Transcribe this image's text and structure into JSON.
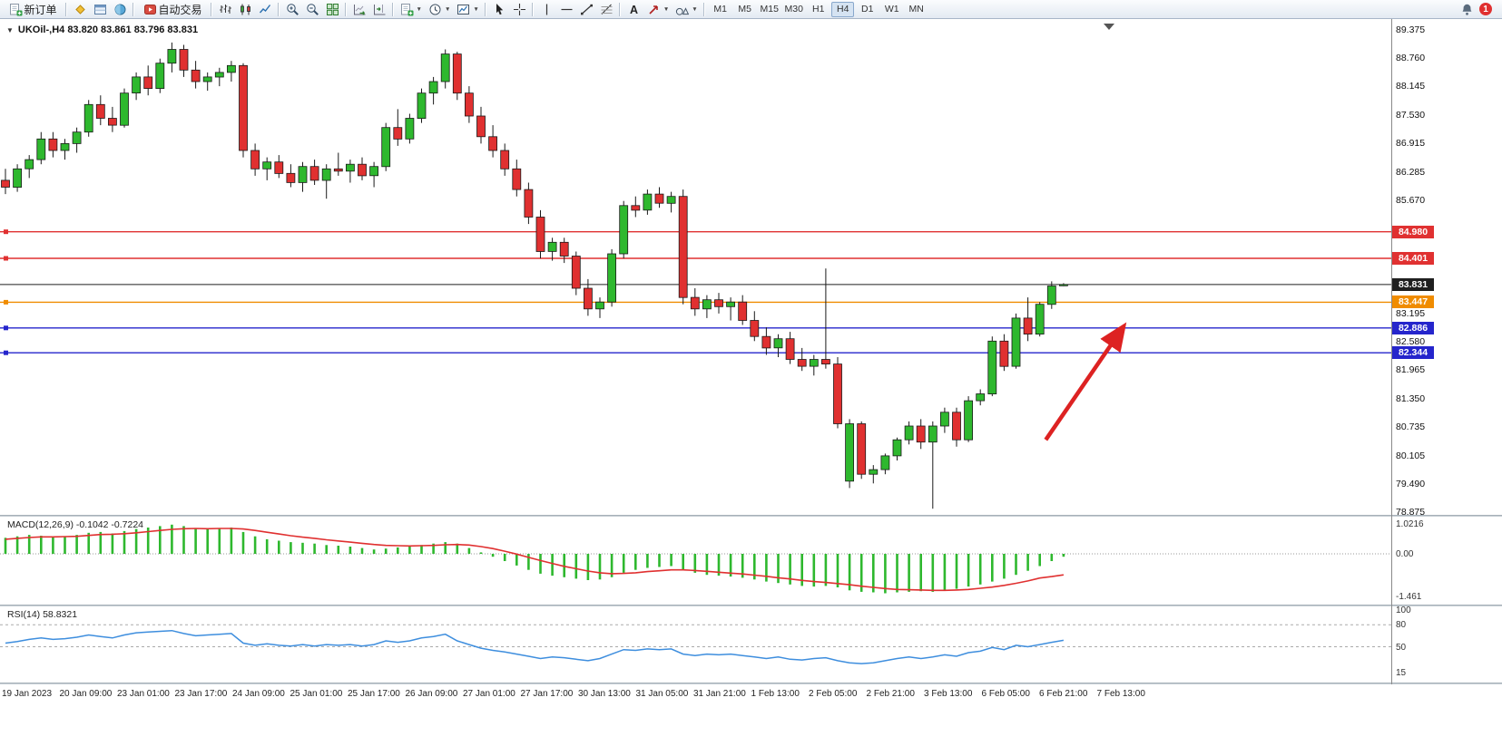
{
  "toolbar": {
    "items": [
      {
        "name": "new-order",
        "icon": "new-order",
        "label": "新订单"
      },
      {
        "sep": true
      },
      {
        "name": "market-watch",
        "icon": "market-watch"
      },
      {
        "name": "data-window",
        "icon": "data-window"
      },
      {
        "name": "navigator",
        "icon": "navigator"
      },
      {
        "sep": true
      },
      {
        "name": "autotrading",
        "icon": "autotrading",
        "label": "自动交易"
      },
      {
        "sep": true
      },
      {
        "name": "chart-bars",
        "icon": "chart-bars"
      },
      {
        "name": "chart-candles",
        "icon": "chart-candles"
      },
      {
        "name": "chart-line",
        "icon": "chart-line"
      },
      {
        "sep": true
      },
      {
        "name": "zoom-in",
        "icon": "zoom-in"
      },
      {
        "name": "zoom-out",
        "icon": "zoom-out"
      },
      {
        "name": "tile-windows",
        "icon": "tile-windows"
      },
      {
        "sep": true
      },
      {
        "name": "auto-scroll",
        "icon": "auto-scroll"
      },
      {
        "name": "chart-shift",
        "icon": "chart-shift"
      },
      {
        "sep": true
      },
      {
        "name": "new-chart",
        "icon": "new-chart",
        "dropdown": true
      },
      {
        "name": "period",
        "icon": "period-clock",
        "dropdown": true
      },
      {
        "name": "templates",
        "icon": "templates",
        "dropdown": true
      },
      {
        "sep": true
      },
      {
        "name": "cursor",
        "icon": "cursor"
      },
      {
        "name": "crosshair",
        "icon": "crosshair"
      },
      {
        "sep": true
      },
      {
        "name": "vertical-line",
        "icon": "vertical-line"
      },
      {
        "name": "horizontal-line",
        "icon": "horizontal-line"
      },
      {
        "name": "trendline",
        "icon": "trendline"
      },
      {
        "name": "fibonacci",
        "icon": "fibonacci"
      },
      {
        "sep": true
      },
      {
        "name": "text",
        "icon": "text"
      },
      {
        "name": "arrow-tools",
        "icon": "arrows",
        "dropdown": true
      },
      {
        "name": "shapes",
        "icon": "shapes",
        "dropdown": true
      },
      {
        "sep": true
      }
    ],
    "timeframes": {
      "options": [
        "M1",
        "M5",
        "M15",
        "M30",
        "H1",
        "H4",
        "D1",
        "W1",
        "MN"
      ],
      "active": "H4"
    },
    "notification_count": "1"
  },
  "chart": {
    "title": "UKOil-,H4  83.820 83.861 83.796 83.831",
    "symbol": "UKOil-",
    "timeframe": "H4",
    "open": "83.820",
    "high": "83.861",
    "low": "83.796",
    "close": "83.831"
  },
  "price_scale": {
    "tick_labels": [
      "89.375",
      "88.760",
      "88.145",
      "87.530",
      "86.915",
      "86.285",
      "85.670",
      "83.195",
      "82.580",
      "81.965",
      "81.350",
      "80.735",
      "80.105",
      "79.490",
      "78.875"
    ],
    "tags": [
      {
        "text": "84.980",
        "color": "#e03131",
        "handle": true
      },
      {
        "text": "84.401",
        "color": "#e03131",
        "handle": true
      },
      {
        "text": "83.831",
        "color": "#1f1f1f",
        "handle": false,
        "role": "current-price"
      },
      {
        "text": "83.447",
        "color": "#f08c00",
        "handle": true
      },
      {
        "text": "82.886",
        "color": "#2525cc",
        "handle": true
      },
      {
        "text": "82.344",
        "color": "#2525cc",
        "handle": true
      }
    ]
  },
  "indicators": {
    "macd": {
      "label": "MACD(12,26,9) -0.1042 -0.7224",
      "scale_labels": [
        "1.0216",
        "0.00",
        "-1.461"
      ]
    },
    "rsi": {
      "label": "RSI(14) 58.8321",
      "scale_labels": [
        "100",
        "80",
        "50",
        "15"
      ],
      "levels": [
        80,
        50
      ]
    }
  },
  "annotations": {
    "trend_arrow": {
      "color": "#dd2222",
      "from_bar": 87.5,
      "from_price": 80.45,
      "to_bar": 94,
      "to_price": 82.9
    }
  },
  "chart_data": [
    {
      "type": "candlestick",
      "name": "UKOil- H4",
      "ylim": [
        78.875,
        89.375
      ],
      "up_color": "#2eb82e",
      "down_color": "#e03030",
      "wick_color": "#1a1a1a",
      "x_labels": [
        "19 Jan 2023",
        "20 Jan 09:00",
        "23 Jan 01:00",
        "23 Jan 17:00",
        "24 Jan 09:00",
        "25 Jan 01:00",
        "25 Jan 17:00",
        "26 Jan 09:00",
        "27 Jan 01:00",
        "27 Jan 17:00",
        "30 Jan 13:00",
        "31 Jan 05:00",
        "31 Jan 21:00",
        "1 Feb 13:00",
        "2 Feb 05:00",
        "2 Feb 21:00",
        "3 Feb 13:00",
        "6 Feb 05:00",
        "6 Feb 21:00",
        "7 Feb 13:00"
      ],
      "ohlc": [
        [
          86.1,
          86.35,
          85.8,
          85.95
        ],
        [
          85.95,
          86.45,
          85.85,
          86.35
        ],
        [
          86.35,
          86.65,
          86.15,
          86.55
        ],
        [
          86.55,
          87.15,
          86.45,
          87.0
        ],
        [
          87.0,
          87.15,
          86.6,
          86.75
        ],
        [
          86.75,
          87.0,
          86.55,
          86.9
        ],
        [
          86.9,
          87.25,
          86.7,
          87.15
        ],
        [
          87.15,
          87.85,
          87.05,
          87.75
        ],
        [
          87.75,
          87.95,
          87.3,
          87.45
        ],
        [
          87.45,
          87.7,
          87.15,
          87.3
        ],
        [
          87.3,
          88.1,
          87.25,
          88.0
        ],
        [
          88.0,
          88.45,
          87.85,
          88.35
        ],
        [
          88.35,
          88.6,
          87.95,
          88.1
        ],
        [
          88.1,
          88.75,
          88.0,
          88.65
        ],
        [
          88.65,
          89.1,
          88.45,
          88.95
        ],
        [
          88.95,
          89.05,
          88.35,
          88.5
        ],
        [
          88.5,
          88.7,
          88.1,
          88.25
        ],
        [
          88.25,
          88.45,
          88.05,
          88.35
        ],
        [
          88.35,
          88.55,
          88.15,
          88.45
        ],
        [
          88.45,
          88.7,
          88.25,
          88.6
        ],
        [
          88.6,
          88.65,
          86.6,
          86.75
        ],
        [
          86.75,
          86.9,
          86.2,
          86.35
        ],
        [
          86.35,
          86.6,
          86.1,
          86.5
        ],
        [
          86.5,
          86.65,
          86.15,
          86.25
        ],
        [
          86.25,
          86.45,
          85.95,
          86.05
        ],
        [
          86.05,
          86.5,
          85.85,
          86.4
        ],
        [
          86.4,
          86.55,
          86.0,
          86.1
        ],
        [
          86.1,
          86.45,
          85.7,
          86.35
        ],
        [
          86.35,
          86.7,
          86.2,
          86.3
        ],
        [
          86.3,
          86.55,
          86.05,
          86.45
        ],
        [
          86.45,
          86.6,
          86.1,
          86.2
        ],
        [
          86.2,
          86.5,
          85.95,
          86.4
        ],
        [
          86.4,
          87.35,
          86.3,
          87.25
        ],
        [
          87.25,
          87.65,
          86.85,
          87.0
        ],
        [
          87.0,
          87.55,
          86.9,
          87.45
        ],
        [
          87.45,
          88.1,
          87.35,
          88.0
        ],
        [
          88.0,
          88.35,
          87.75,
          88.25
        ],
        [
          88.25,
          88.95,
          88.1,
          88.85
        ],
        [
          88.85,
          88.9,
          87.85,
          88.0
        ],
        [
          88.0,
          88.15,
          87.35,
          87.5
        ],
        [
          87.5,
          87.7,
          86.9,
          87.05
        ],
        [
          87.05,
          87.3,
          86.6,
          86.75
        ],
        [
          86.75,
          86.9,
          86.2,
          86.35
        ],
        [
          86.35,
          86.55,
          85.75,
          85.9
        ],
        [
          85.9,
          86.05,
          85.15,
          85.3
        ],
        [
          85.3,
          85.45,
          84.4,
          84.55
        ],
        [
          84.55,
          84.85,
          84.35,
          84.75
        ],
        [
          84.75,
          84.85,
          84.3,
          84.45
        ],
        [
          84.45,
          84.55,
          83.6,
          83.75
        ],
        [
          83.75,
          83.95,
          83.15,
          83.3
        ],
        [
          83.3,
          83.55,
          83.1,
          83.45
        ],
        [
          83.45,
          84.6,
          83.35,
          84.5
        ],
        [
          84.5,
          85.65,
          84.4,
          85.55
        ],
        [
          85.55,
          85.75,
          85.3,
          85.45
        ],
        [
          85.45,
          85.9,
          85.35,
          85.8
        ],
        [
          85.8,
          85.95,
          85.5,
          85.6
        ],
        [
          85.6,
          85.85,
          85.4,
          85.75
        ],
        [
          85.75,
          85.9,
          83.4,
          83.55
        ],
        [
          83.55,
          83.75,
          83.15,
          83.3
        ],
        [
          83.3,
          83.6,
          83.1,
          83.5
        ],
        [
          83.5,
          83.65,
          83.2,
          83.35
        ],
        [
          83.35,
          83.55,
          83.05,
          83.45
        ],
        [
          83.45,
          83.6,
          82.95,
          83.05
        ],
        [
          83.05,
          83.25,
          82.6,
          82.7
        ],
        [
          82.7,
          82.9,
          82.3,
          82.45
        ],
        [
          82.45,
          82.75,
          82.25,
          82.65
        ],
        [
          82.65,
          82.8,
          82.1,
          82.2
        ],
        [
          82.2,
          82.45,
          81.95,
          82.05
        ],
        [
          82.05,
          82.3,
          81.85,
          82.2
        ],
        [
          82.2,
          84.18,
          82.0,
          82.1
        ],
        [
          82.1,
          82.25,
          80.7,
          80.8
        ],
        [
          79.55,
          80.9,
          79.4,
          80.8
        ],
        [
          80.8,
          80.85,
          79.6,
          79.7
        ],
        [
          79.7,
          79.9,
          79.5,
          79.8
        ],
        [
          79.8,
          80.15,
          79.7,
          80.1
        ],
        [
          80.1,
          80.5,
          80.0,
          80.45
        ],
        [
          80.45,
          80.85,
          80.35,
          80.75
        ],
        [
          80.75,
          80.9,
          80.25,
          80.4
        ],
        [
          80.4,
          80.85,
          78.95,
          80.75
        ],
        [
          80.75,
          81.15,
          80.6,
          81.05
        ],
        [
          81.05,
          81.15,
          80.3,
          80.45
        ],
        [
          80.45,
          81.4,
          80.4,
          81.3
        ],
        [
          81.3,
          81.55,
          81.2,
          81.45
        ],
        [
          81.45,
          82.7,
          81.4,
          82.6
        ],
        [
          82.6,
          82.75,
          81.95,
          82.05
        ],
        [
          82.05,
          83.2,
          82.0,
          83.1
        ],
        [
          83.1,
          83.55,
          82.6,
          82.75
        ],
        [
          82.75,
          83.45,
          82.7,
          83.4
        ],
        [
          83.4,
          83.9,
          83.3,
          83.8
        ],
        [
          83.82,
          83.861,
          83.796,
          83.831
        ]
      ]
    },
    {
      "type": "bar",
      "name": "MACD(12,26,9)",
      "bar_color": "#2eb82e",
      "ylim": [
        -1.461,
        1.0216
      ],
      "current": [
        -0.1042,
        -0.7224
      ],
      "values": [
        0.55,
        0.6,
        0.65,
        0.62,
        0.58,
        0.6,
        0.65,
        0.72,
        0.75,
        0.7,
        0.78,
        0.85,
        0.9,
        0.95,
        1.0,
        0.95,
        0.88,
        0.85,
        0.88,
        0.9,
        0.75,
        0.6,
        0.5,
        0.45,
        0.4,
        0.38,
        0.35,
        0.3,
        0.28,
        0.25,
        0.2,
        0.15,
        0.18,
        0.22,
        0.25,
        0.3,
        0.35,
        0.4,
        0.35,
        0.2,
        0.05,
        -0.1,
        -0.25,
        -0.4,
        -0.55,
        -0.68,
        -0.75,
        -0.8,
        -0.85,
        -0.9,
        -0.88,
        -0.8,
        -0.65,
        -0.55,
        -0.48,
        -0.45,
        -0.42,
        -0.55,
        -0.65,
        -0.72,
        -0.75,
        -0.78,
        -0.82,
        -0.88,
        -0.95,
        -1.0,
        -1.05,
        -1.1,
        -1.12,
        -1.1,
        -1.15,
        -1.25,
        -1.3,
        -1.32,
        -1.35,
        -1.32,
        -1.3,
        -1.28,
        -1.3,
        -1.25,
        -1.2,
        -1.12,
        -1.05,
        -0.95,
        -0.85,
        -0.72,
        -0.58,
        -0.42,
        -0.25,
        -0.1
      ],
      "signal": {
        "name": "Signal",
        "color": "#e03030",
        "values": [
          0.5,
          0.53,
          0.56,
          0.58,
          0.58,
          0.59,
          0.6,
          0.63,
          0.66,
          0.67,
          0.69,
          0.72,
          0.76,
          0.8,
          0.84,
          0.86,
          0.87,
          0.86,
          0.87,
          0.87,
          0.85,
          0.8,
          0.74,
          0.68,
          0.62,
          0.57,
          0.53,
          0.48,
          0.44,
          0.4,
          0.36,
          0.32,
          0.29,
          0.28,
          0.27,
          0.28,
          0.29,
          0.31,
          0.32,
          0.3,
          0.25,
          0.18,
          0.09,
          -0.01,
          -0.12,
          -0.23,
          -0.33,
          -0.43,
          -0.51,
          -0.59,
          -0.65,
          -0.68,
          -0.67,
          -0.65,
          -0.61,
          -0.58,
          -0.55,
          -0.55,
          -0.57,
          -0.6,
          -0.63,
          -0.66,
          -0.69,
          -0.73,
          -0.77,
          -0.82,
          -0.86,
          -0.91,
          -0.95,
          -0.98,
          -1.02,
          -1.06,
          -1.11,
          -1.15,
          -1.19,
          -1.22,
          -1.23,
          -1.24,
          -1.25,
          -1.25,
          -1.24,
          -1.22,
          -1.18,
          -1.14,
          -1.08,
          -1.01,
          -0.93,
          -0.83,
          -0.78,
          -0.72
        ]
      }
    },
    {
      "type": "line",
      "name": "RSI(14)",
      "color": "#3e8ede",
      "ylim": [
        0,
        100
      ],
      "levels": [
        80,
        50
      ],
      "current": 58.8321,
      "values": [
        55,
        57,
        60,
        62,
        60,
        61,
        63,
        66,
        64,
        62,
        66,
        69,
        70,
        71,
        72,
        68,
        65,
        66,
        67,
        68,
        55,
        52,
        54,
        52,
        51,
        53,
        51,
        53,
        52,
        53,
        51,
        53,
        58,
        56,
        58,
        62,
        64,
        67,
        58,
        53,
        48,
        45,
        43,
        40,
        37,
        34,
        36,
        35,
        33,
        31,
        34,
        40,
        46,
        45,
        47,
        46,
        47,
        40,
        38,
        40,
        39,
        40,
        38,
        36,
        34,
        36,
        33,
        32,
        34,
        35,
        31,
        28,
        27,
        28,
        31,
        34,
        36,
        34,
        36,
        39,
        37,
        42,
        44,
        49,
        46,
        52,
        50,
        53,
        56,
        58.8
      ]
    }
  ]
}
